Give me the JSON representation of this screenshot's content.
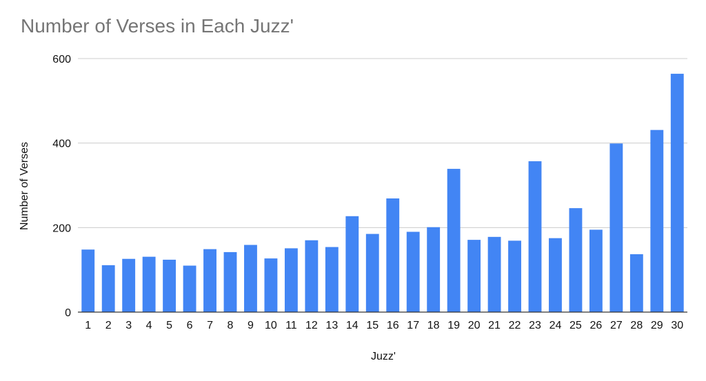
{
  "chart_data": {
    "type": "bar",
    "title": "Number of Verses in Each Juzz'",
    "xlabel": "Juzz'",
    "ylabel": "Number of Verses",
    "categories": [
      "1",
      "2",
      "3",
      "4",
      "5",
      "6",
      "7",
      "8",
      "9",
      "10",
      "11",
      "12",
      "13",
      "14",
      "15",
      "16",
      "17",
      "18",
      "19",
      "20",
      "21",
      "22",
      "23",
      "24",
      "25",
      "26",
      "27",
      "28",
      "29",
      "30"
    ],
    "values": [
      148,
      111,
      126,
      131,
      124,
      110,
      149,
      142,
      159,
      127,
      151,
      170,
      154,
      227,
      185,
      269,
      190,
      201,
      339,
      171,
      178,
      169,
      357,
      175,
      246,
      195,
      399,
      137,
      431,
      564
    ],
    "ylim": [
      0,
      600
    ],
    "yticks": [
      0,
      200,
      400,
      600
    ],
    "grid": true,
    "legend": "none",
    "bar_color": "#4285f4",
    "grid_color": "#cccccc",
    "axis_color": "#333333"
  }
}
